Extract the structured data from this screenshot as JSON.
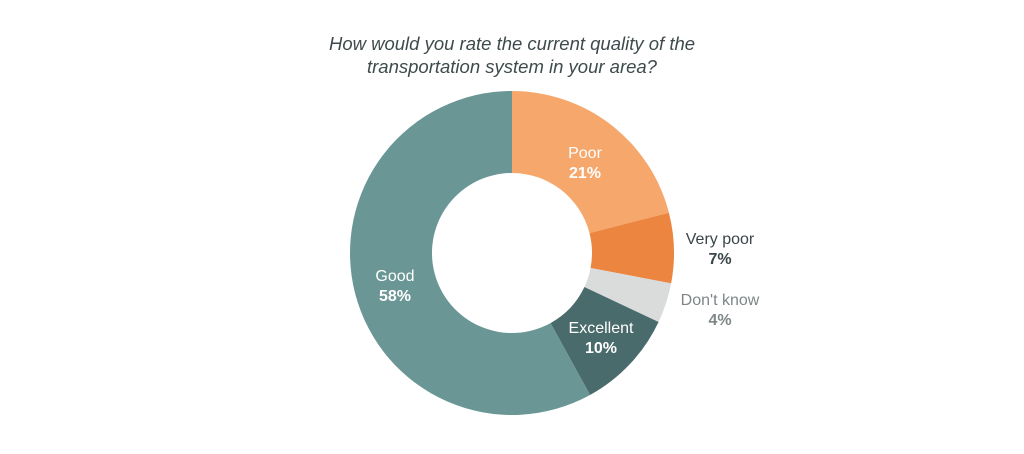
{
  "chart_data": {
    "type": "pie",
    "variant": "donut",
    "title": "How would you rate the current quality of the transportation system in your area?",
    "title_lines": [
      "How would you rate the current quality of the",
      "transportation system in your area?"
    ],
    "slices": [
      {
        "label": "Poor",
        "value": 21,
        "display": "21%",
        "color": "#f6a76c",
        "label_position": "inside",
        "label_color": "#ffffff"
      },
      {
        "label": "Very poor",
        "value": 7,
        "display": "7%",
        "color": "#ec8540",
        "label_position": "outside",
        "label_color": "#3a4648"
      },
      {
        "label": "Don't know",
        "value": 4,
        "display": "4%",
        "color": "#dadcdc",
        "label_position": "outside",
        "label_color": "#7e8688"
      },
      {
        "label": "Excellent",
        "value": 10,
        "display": "10%",
        "color": "#4a6b6b",
        "label_position": "inside",
        "label_color": "#ffffff"
      },
      {
        "label": "Good",
        "value": 58,
        "display": "58%",
        "color": "#6b9696",
        "label_position": "inside",
        "label_color": "#ffffff"
      }
    ],
    "start": "top",
    "direction": "clockwise",
    "legend": "none"
  }
}
